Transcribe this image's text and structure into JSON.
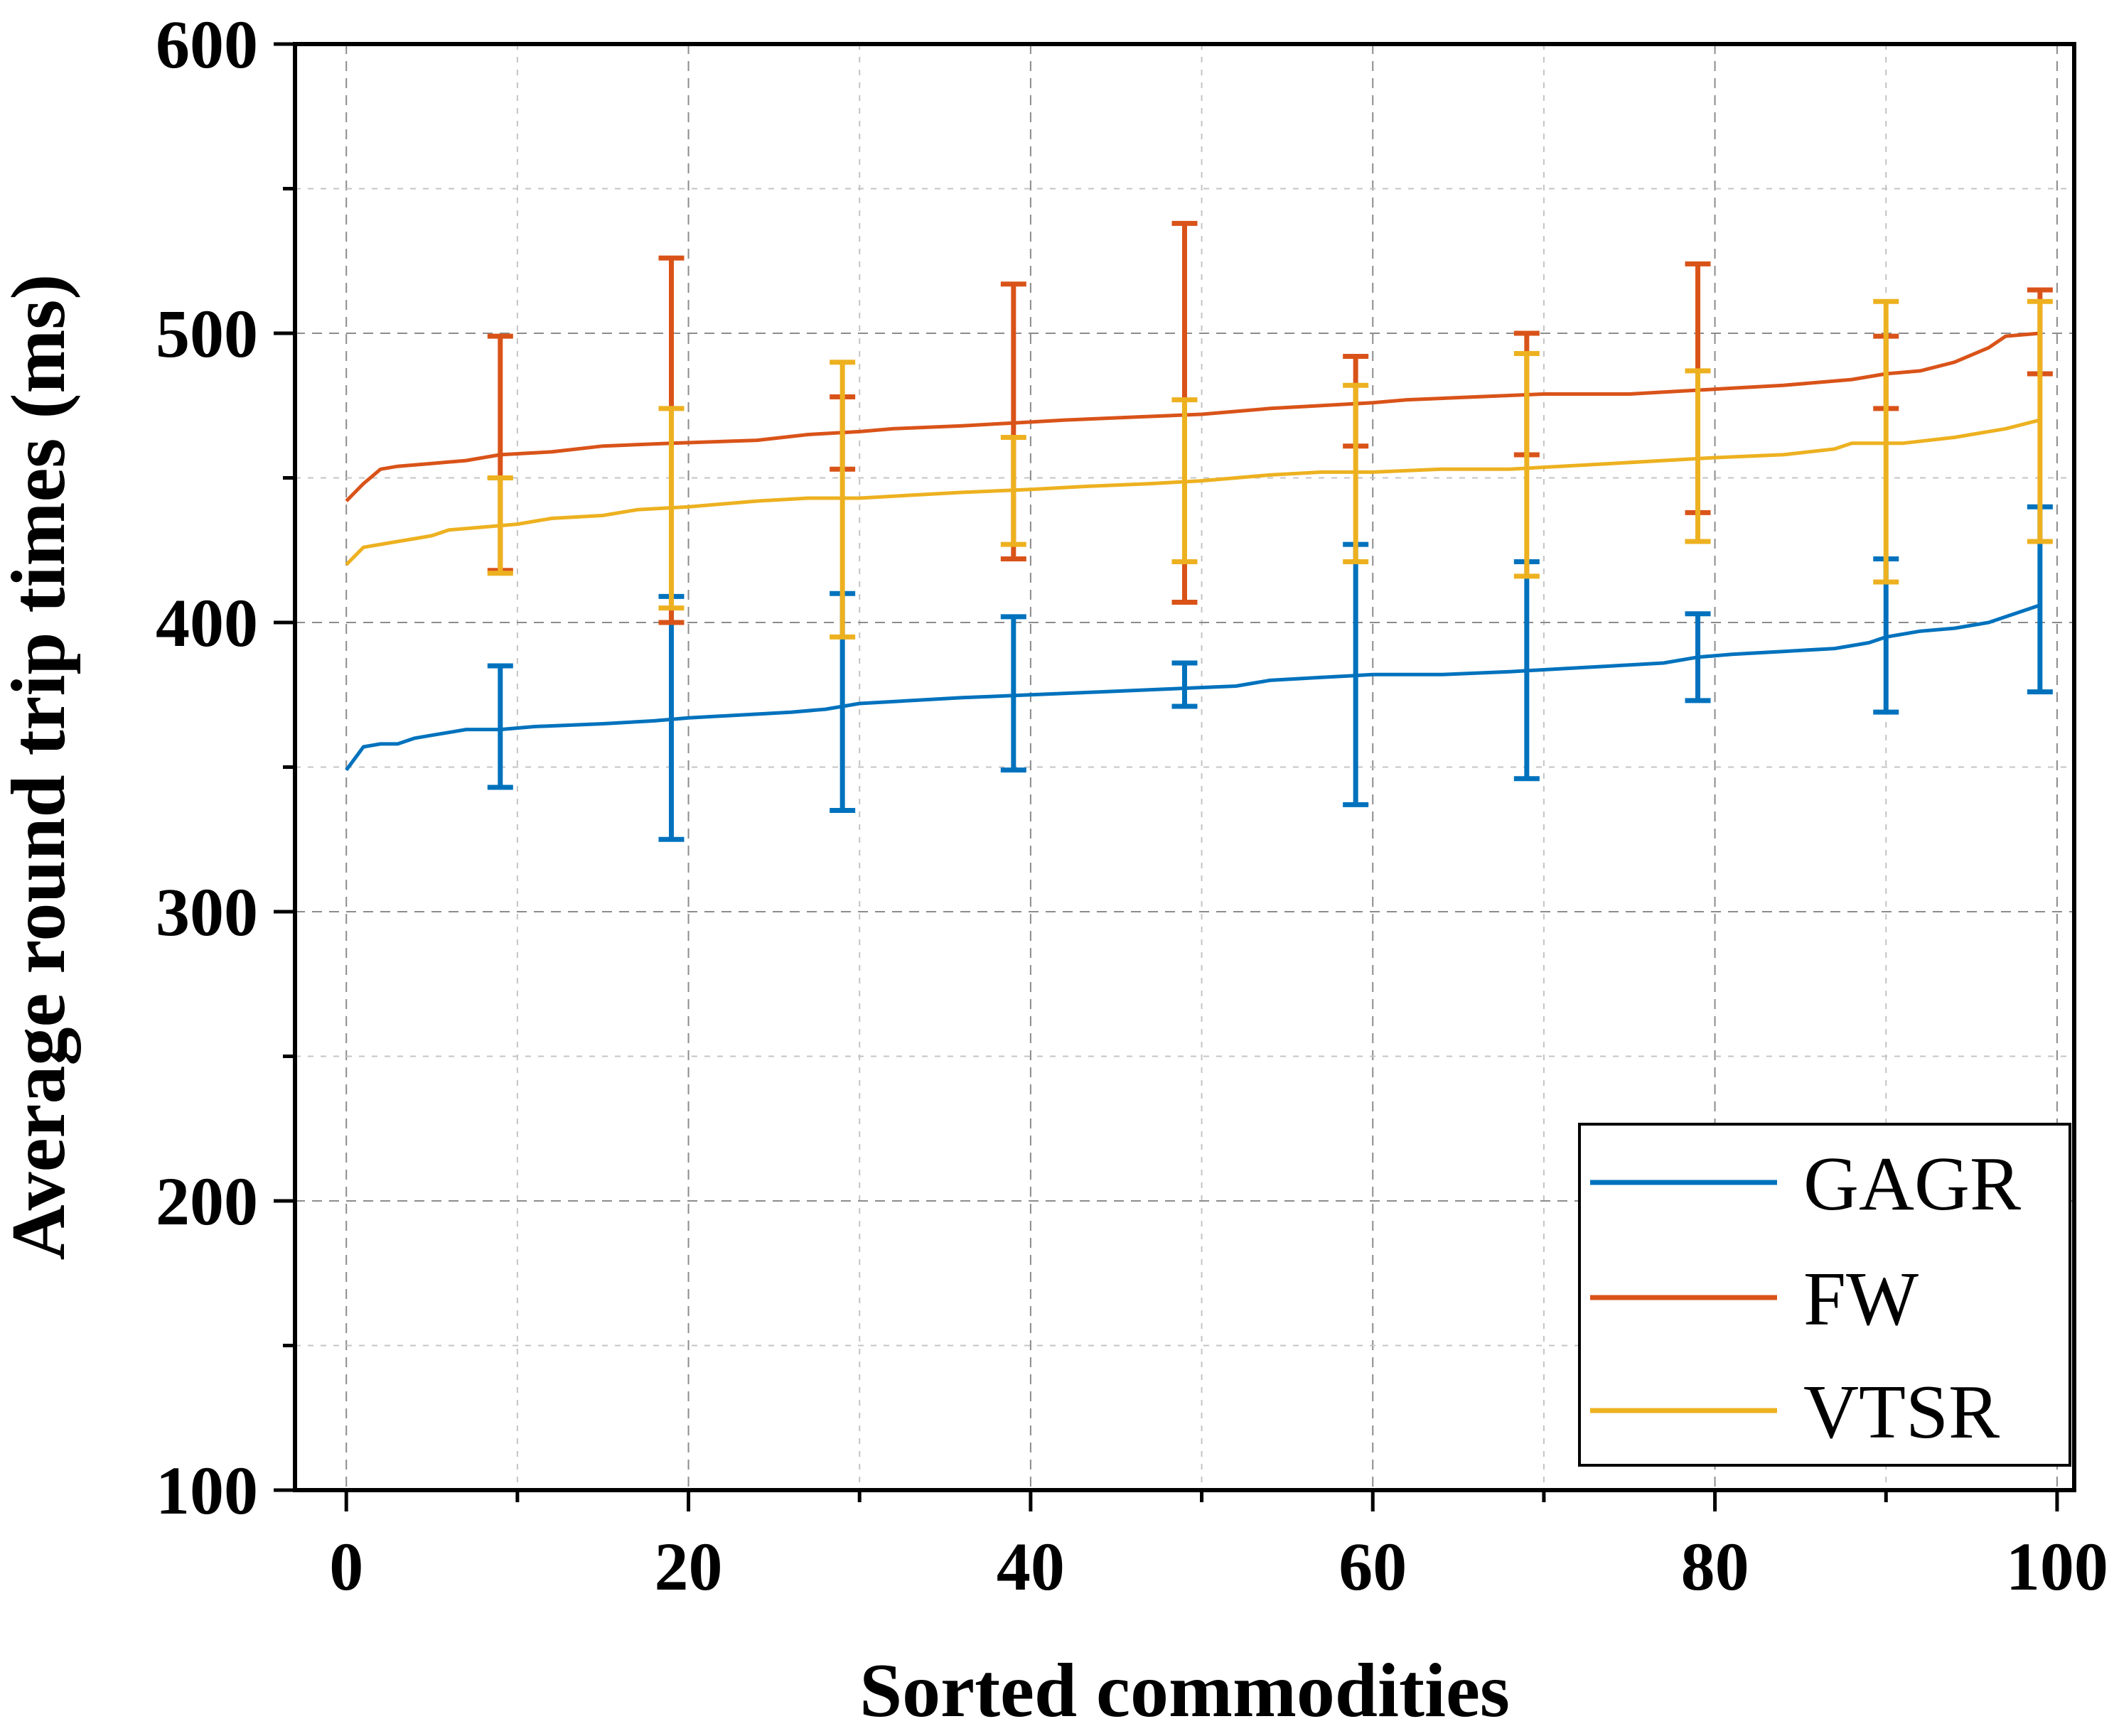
{
  "chart_data": {
    "type": "line",
    "xlabel": "Sorted commodities",
    "ylabel": "Average round trip times (ms)",
    "xlim": [
      -3,
      101
    ],
    "ylim": [
      100,
      600
    ],
    "x_ticks": [
      0,
      20,
      40,
      60,
      80,
      100
    ],
    "y_ticks": [
      100,
      200,
      300,
      400,
      500,
      600
    ],
    "x_minor_ticks": [
      10,
      30,
      50,
      70,
      90
    ],
    "y_minor_ticks": [
      150,
      250,
      350,
      450,
      550
    ],
    "grid": true,
    "legend_position": "bottom-right",
    "series": [
      {
        "name": "GAGR",
        "color": "#0072BD",
        "points": [
          [
            0,
            349
          ],
          [
            1,
            357
          ],
          [
            2,
            358
          ],
          [
            3,
            358
          ],
          [
            4,
            360
          ],
          [
            5,
            361
          ],
          [
            6,
            362
          ],
          [
            7,
            363
          ],
          [
            9,
            363
          ],
          [
            11,
            364
          ],
          [
            15,
            365
          ],
          [
            18,
            366
          ],
          [
            20,
            367
          ],
          [
            23,
            368
          ],
          [
            26,
            369
          ],
          [
            28,
            370
          ],
          [
            30,
            372
          ],
          [
            33,
            373
          ],
          [
            36,
            374
          ],
          [
            40,
            375
          ],
          [
            44,
            376
          ],
          [
            48,
            377
          ],
          [
            52,
            378
          ],
          [
            54,
            380
          ],
          [
            57,
            381
          ],
          [
            60,
            382
          ],
          [
            64,
            382
          ],
          [
            68,
            383
          ],
          [
            71,
            384
          ],
          [
            74,
            385
          ],
          [
            77,
            386
          ],
          [
            79,
            388
          ],
          [
            81,
            389
          ],
          [
            84,
            390
          ],
          [
            87,
            391
          ],
          [
            89,
            393
          ],
          [
            90,
            395
          ],
          [
            92,
            397
          ],
          [
            94,
            398
          ],
          [
            96,
            400
          ],
          [
            97,
            402
          ],
          [
            98,
            404
          ],
          [
            99,
            406
          ]
        ],
        "error_bars": [
          {
            "x": 9,
            "low": 343,
            "high": 385
          },
          {
            "x": 19,
            "low": 325,
            "high": 409
          },
          {
            "x": 29,
            "low": 335,
            "high": 410
          },
          {
            "x": 39,
            "low": 349,
            "high": 402
          },
          {
            "x": 49,
            "low": 371,
            "high": 386
          },
          {
            "x": 59,
            "low": 337,
            "high": 427
          },
          {
            "x": 69,
            "low": 346,
            "high": 421
          },
          {
            "x": 79,
            "low": 373,
            "high": 403
          },
          {
            "x": 90,
            "low": 369,
            "high": 422
          },
          {
            "x": 99,
            "low": 376,
            "high": 440
          }
        ]
      },
      {
        "name": "FW",
        "color": "#D95319",
        "points": [
          [
            0,
            442
          ],
          [
            1,
            448
          ],
          [
            2,
            453
          ],
          [
            3,
            454
          ],
          [
            5,
            455
          ],
          [
            7,
            456
          ],
          [
            9,
            458
          ],
          [
            12,
            459
          ],
          [
            15,
            461
          ],
          [
            19,
            462
          ],
          [
            24,
            463
          ],
          [
            27,
            465
          ],
          [
            30,
            466
          ],
          [
            32,
            467
          ],
          [
            36,
            468
          ],
          [
            39,
            469
          ],
          [
            42,
            470
          ],
          [
            46,
            471
          ],
          [
            50,
            472
          ],
          [
            54,
            474
          ],
          [
            57,
            475
          ],
          [
            60,
            476
          ],
          [
            62,
            477
          ],
          [
            66,
            478
          ],
          [
            70,
            479
          ],
          [
            75,
            479
          ],
          [
            78,
            480
          ],
          [
            81,
            481
          ],
          [
            84,
            482
          ],
          [
            88,
            484
          ],
          [
            90,
            486
          ],
          [
            92,
            487
          ],
          [
            94,
            490
          ],
          [
            96,
            495
          ],
          [
            97,
            499
          ],
          [
            99,
            500
          ]
        ],
        "error_bars": [
          {
            "x": 9,
            "low": 418,
            "high": 499
          },
          {
            "x": 19,
            "low": 400,
            "high": 526
          },
          {
            "x": 29,
            "low": 453,
            "high": 478
          },
          {
            "x": 39,
            "low": 422,
            "high": 517
          },
          {
            "x": 49,
            "low": 407,
            "high": 538
          },
          {
            "x": 59,
            "low": 461,
            "high": 492
          },
          {
            "x": 69,
            "low": 458,
            "high": 500
          },
          {
            "x": 79,
            "low": 438,
            "high": 524
          },
          {
            "x": 90,
            "low": 474,
            "high": 499
          },
          {
            "x": 99,
            "low": 486,
            "high": 515
          }
        ]
      },
      {
        "name": "VTSR",
        "color": "#EDB120",
        "points": [
          [
            0,
            420
          ],
          [
            1,
            426
          ],
          [
            2,
            427
          ],
          [
            3,
            428
          ],
          [
            4,
            429
          ],
          [
            5,
            430
          ],
          [
            6,
            432
          ],
          [
            8,
            433
          ],
          [
            10,
            434
          ],
          [
            12,
            436
          ],
          [
            15,
            437
          ],
          [
            17,
            439
          ],
          [
            20,
            440
          ],
          [
            24,
            442
          ],
          [
            27,
            443
          ],
          [
            30,
            443
          ],
          [
            33,
            444
          ],
          [
            36,
            445
          ],
          [
            40,
            446
          ],
          [
            43,
            447
          ],
          [
            47,
            448
          ],
          [
            50,
            449
          ],
          [
            54,
            451
          ],
          [
            57,
            452
          ],
          [
            60,
            452
          ],
          [
            64,
            453
          ],
          [
            68,
            453
          ],
          [
            71,
            454
          ],
          [
            74,
            455
          ],
          [
            77,
            456
          ],
          [
            80,
            457
          ],
          [
            84,
            458
          ],
          [
            87,
            460
          ],
          [
            88,
            462
          ],
          [
            91,
            462
          ],
          [
            94,
            464
          ],
          [
            97,
            467
          ],
          [
            99,
            470
          ]
        ],
        "error_bars": [
          {
            "x": 9,
            "low": 417,
            "high": 450
          },
          {
            "x": 19,
            "low": 405,
            "high": 474
          },
          {
            "x": 29,
            "low": 395,
            "high": 490
          },
          {
            "x": 39,
            "low": 427,
            "high": 464
          },
          {
            "x": 49,
            "low": 421,
            "high": 477
          },
          {
            "x": 59,
            "low": 421,
            "high": 482
          },
          {
            "x": 69,
            "low": 416,
            "high": 493
          },
          {
            "x": 79,
            "low": 428,
            "high": 487
          },
          {
            "x": 90,
            "low": 414,
            "high": 511
          },
          {
            "x": 99,
            "low": 428,
            "high": 511
          }
        ]
      }
    ]
  }
}
